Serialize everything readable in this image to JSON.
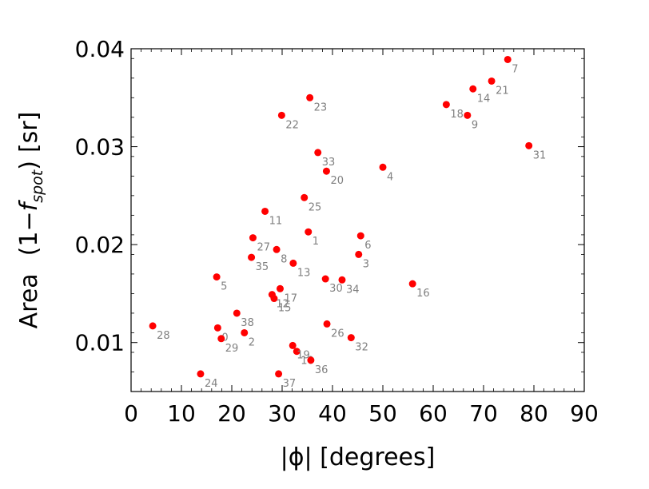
{
  "chart_data": {
    "type": "scatter",
    "xlabel": "|ϕ| [degrees]",
    "ylabel": {
      "prefix": "Area",
      "open": "(1−",
      "f": "f",
      "sub": "spot",
      "close": ")",
      "suffix": "[sr]"
    },
    "xlim": [
      0,
      90
    ],
    "ylim": [
      0.005,
      0.04
    ],
    "xticks": [
      0,
      10,
      20,
      30,
      40,
      50,
      60,
      70,
      80,
      90
    ],
    "xtick_labels": [
      "0",
      "10",
      "20",
      "30",
      "40",
      "50",
      "60",
      "70",
      "80",
      "90"
    ],
    "yticks": [
      0.01,
      0.02,
      0.03,
      0.04
    ],
    "ytick_labels": [
      "0.01",
      "0.02",
      "0.03",
      "0.04"
    ],
    "grid": false,
    "marker_color": "#ff0000",
    "label_color": "#808080",
    "points": [
      {
        "label": "0",
        "x": 17.2,
        "y": 0.0115
      },
      {
        "label": "1",
        "x": 35.2,
        "y": 0.0213
      },
      {
        "label": "2",
        "x": 22.5,
        "y": 0.011
      },
      {
        "label": "3",
        "x": 45.2,
        "y": 0.019
      },
      {
        "label": "4",
        "x": 50.0,
        "y": 0.0279
      },
      {
        "label": "5",
        "x": 17.0,
        "y": 0.0167
      },
      {
        "label": "6",
        "x": 45.6,
        "y": 0.0209
      },
      {
        "label": "7",
        "x": 74.8,
        "y": 0.0389
      },
      {
        "label": "8",
        "x": 28.9,
        "y": 0.0195
      },
      {
        "label": "9",
        "x": 66.8,
        "y": 0.0332
      },
      {
        "label": "10",
        "x": 32.9,
        "y": 0.0091
      },
      {
        "label": "11",
        "x": 26.6,
        "y": 0.0234
      },
      {
        "label": "12",
        "x": 28.0,
        "y": 0.0149
      },
      {
        "label": "13",
        "x": 32.2,
        "y": 0.0181
      },
      {
        "label": "14",
        "x": 67.9,
        "y": 0.0359
      },
      {
        "label": "15",
        "x": 28.4,
        "y": 0.0145
      },
      {
        "label": "16",
        "x": 55.9,
        "y": 0.016
      },
      {
        "label": "17",
        "x": 29.6,
        "y": 0.0155
      },
      {
        "label": "18",
        "x": 62.6,
        "y": 0.0343
      },
      {
        "label": "19",
        "x": 32.1,
        "y": 0.0097
      },
      {
        "label": "20",
        "x": 38.8,
        "y": 0.0275
      },
      {
        "label": "21",
        "x": 71.6,
        "y": 0.0367
      },
      {
        "label": "22",
        "x": 29.9,
        "y": 0.0332
      },
      {
        "label": "23",
        "x": 35.5,
        "y": 0.035
      },
      {
        "label": "24",
        "x": 13.8,
        "y": 0.0068
      },
      {
        "label": "25",
        "x": 34.4,
        "y": 0.0248
      },
      {
        "label": "26",
        "x": 38.9,
        "y": 0.0119
      },
      {
        "label": "27",
        "x": 24.2,
        "y": 0.0207
      },
      {
        "label": "28",
        "x": 4.3,
        "y": 0.0117
      },
      {
        "label": "29",
        "x": 17.9,
        "y": 0.0104
      },
      {
        "label": "30",
        "x": 38.6,
        "y": 0.0165
      },
      {
        "label": "31",
        "x": 79.0,
        "y": 0.0301
      },
      {
        "label": "32",
        "x": 43.7,
        "y": 0.0105
      },
      {
        "label": "33",
        "x": 37.1,
        "y": 0.0294
      },
      {
        "label": "34",
        "x": 41.9,
        "y": 0.0164
      },
      {
        "label": "35",
        "x": 23.9,
        "y": 0.0187
      },
      {
        "label": "36",
        "x": 35.7,
        "y": 0.0082
      },
      {
        "label": "37",
        "x": 29.3,
        "y": 0.0068
      },
      {
        "label": "38",
        "x": 21.0,
        "y": 0.013
      }
    ]
  }
}
